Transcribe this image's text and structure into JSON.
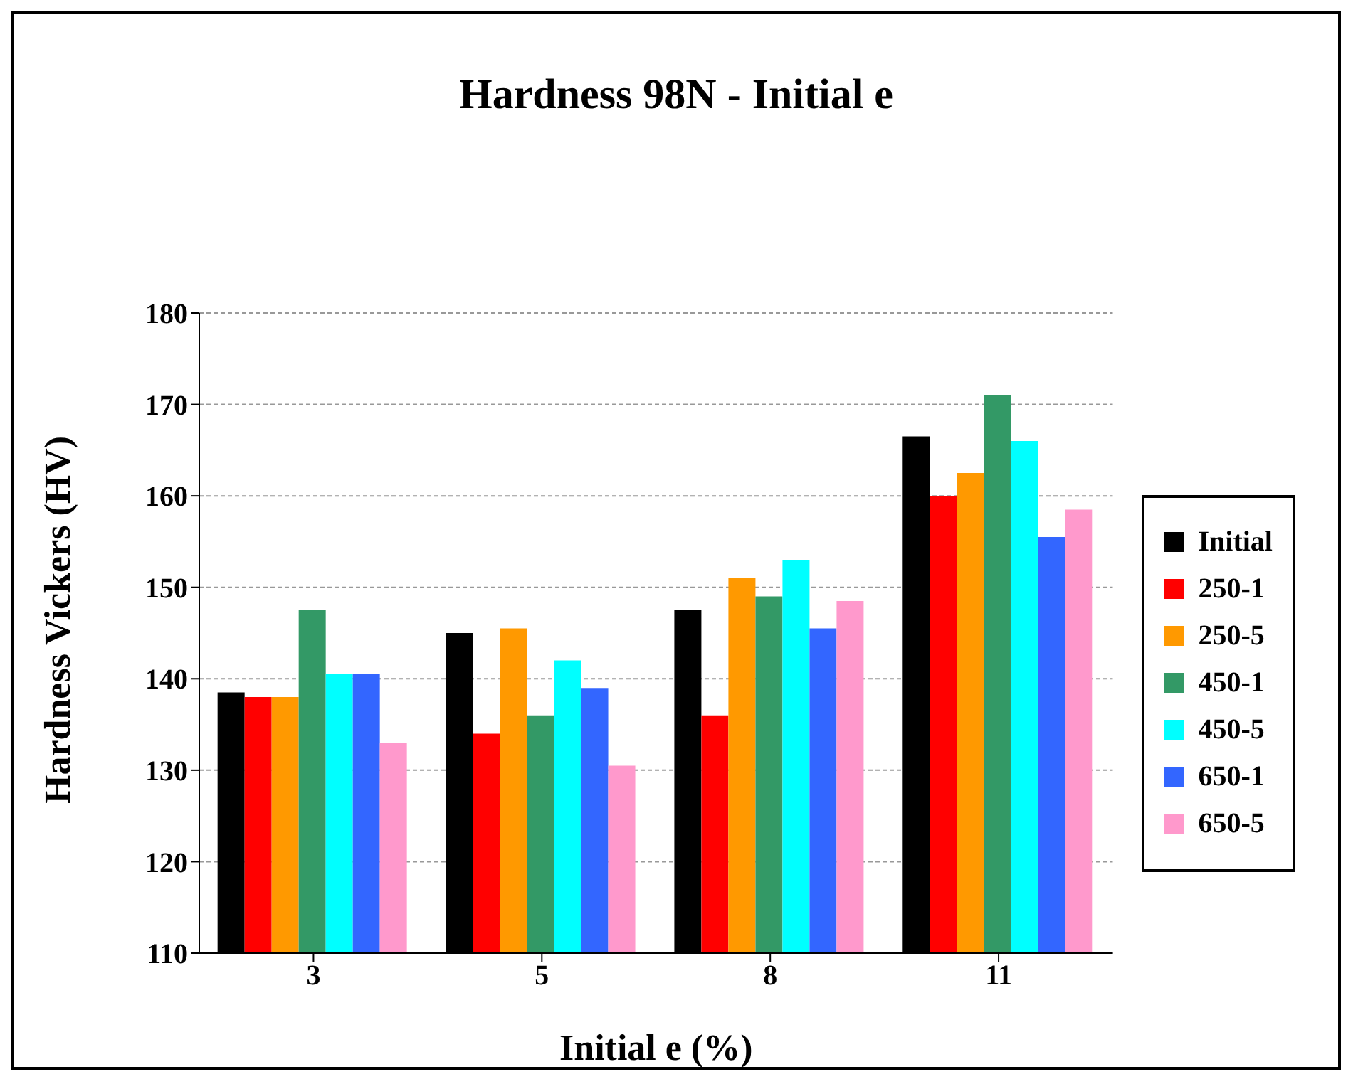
{
  "chart_data": {
    "type": "bar",
    "title": "Hardness 98N - Initial e",
    "xlabel": "Initial e (%)",
    "ylabel": "Hardness Vickers (HV)",
    "categories": [
      "3",
      "5",
      "8",
      "11"
    ],
    "series": [
      {
        "name": "Initial",
        "color": "#000000",
        "values": [
          138.5,
          145,
          147.5,
          166.5
        ]
      },
      {
        "name": "250-1",
        "color": "#ff0000",
        "values": [
          138,
          134,
          136,
          160
        ]
      },
      {
        "name": "250-5",
        "color": "#ff9900",
        "values": [
          138,
          145.5,
          151,
          162.5
        ]
      },
      {
        "name": "450-1",
        "color": "#339966",
        "values": [
          147.5,
          136,
          149,
          171
        ]
      },
      {
        "name": "450-5",
        "color": "#00ffff",
        "values": [
          140.5,
          142,
          153,
          166
        ]
      },
      {
        "name": "650-1",
        "color": "#3366ff",
        "values": [
          140.5,
          139,
          145.5,
          155.5
        ]
      },
      {
        "name": "650-5",
        "color": "#ff99cc",
        "values": [
          133,
          130.5,
          148.5,
          158.5
        ]
      }
    ],
    "ylim": [
      110,
      180
    ],
    "yticks": [
      110,
      120,
      130,
      140,
      150,
      160,
      170,
      180
    ],
    "grid": "y",
    "legend": "right"
  }
}
